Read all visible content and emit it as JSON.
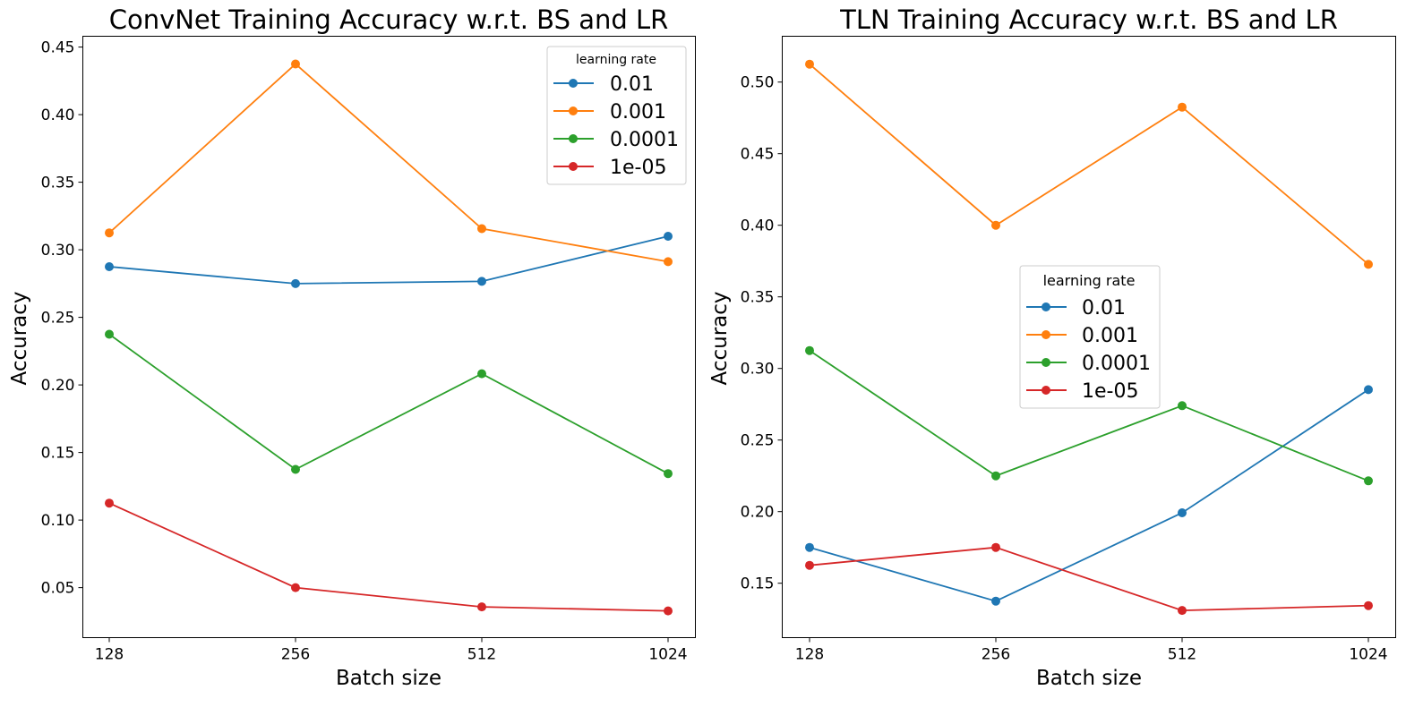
{
  "chart_data": [
    {
      "type": "line",
      "title": "ConvNet Training Accuracy w.r.t. BS and LR",
      "xlabel": "Batch size",
      "ylabel": "Accuracy",
      "categories": [
        "128",
        "256",
        "512",
        "1024"
      ],
      "yticks": [
        "0.05",
        "0.10",
        "0.15",
        "0.20",
        "0.25",
        "0.30",
        "0.35",
        "0.40",
        "0.45"
      ],
      "ylim": [
        0.013,
        0.458
      ],
      "grid": false,
      "legend": {
        "title": "learning rate",
        "placement": "top-right"
      },
      "series": [
        {
          "name": "0.01",
          "color": "#1f77b4",
          "values": [
            0.2875,
            0.275,
            0.2766,
            0.31
          ]
        },
        {
          "name": "0.001",
          "color": "#ff7f0e",
          "values": [
            0.3125,
            0.4375,
            0.3156,
            0.2912
          ]
        },
        {
          "name": "0.0001",
          "color": "#2ca02c",
          "values": [
            0.2375,
            0.1375,
            0.2083,
            0.1344
          ]
        },
        {
          "name": "1e-05",
          "color": "#d62728",
          "values": [
            0.1125,
            0.05,
            0.0358,
            0.0328
          ]
        }
      ]
    },
    {
      "type": "line",
      "title": "TLN Training Accuracy w.r.t. BS and LR",
      "xlabel": "Batch size",
      "ylabel": "Accuracy",
      "categories": [
        "128",
        "256",
        "512",
        "1024"
      ],
      "yticks": [
        "0.15",
        "0.20",
        "0.25",
        "0.30",
        "0.35",
        "0.40",
        "0.45",
        "0.50"
      ],
      "ylim": [
        0.112,
        0.532
      ],
      "grid": false,
      "legend": {
        "title": "learning rate",
        "placement": "center"
      },
      "series": [
        {
          "name": "0.01",
          "color": "#1f77b4",
          "values": [
            0.175,
            0.1375,
            0.1992,
            0.2852
          ]
        },
        {
          "name": "0.001",
          "color": "#ff7f0e",
          "values": [
            0.5125,
            0.4,
            0.4825,
            0.3727
          ]
        },
        {
          "name": "0.0001",
          "color": "#2ca02c",
          "values": [
            0.3125,
            0.225,
            0.274,
            0.2215
          ]
        },
        {
          "name": "1e-05",
          "color": "#d62728",
          "values": [
            0.1625,
            0.175,
            0.131,
            0.1344
          ]
        }
      ]
    }
  ]
}
